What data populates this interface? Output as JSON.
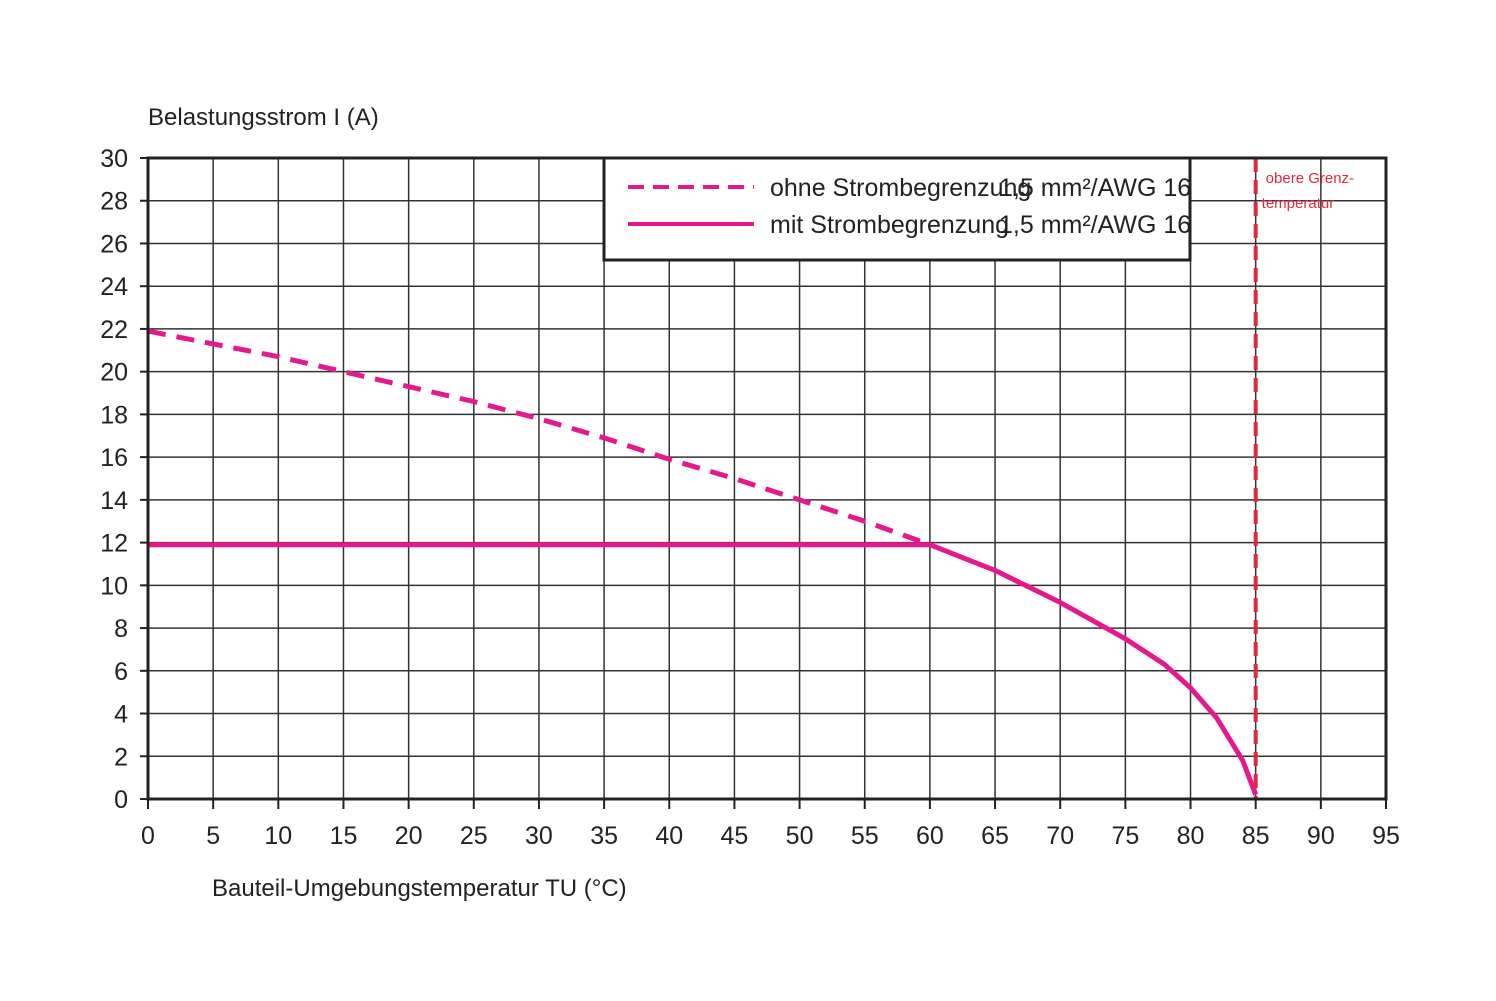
{
  "chart_data": {
    "type": "line",
    "ylabel": "Belastungsstrom I (A)",
    "xlabel": "Bauteil-Umgebungstemperatur TU (°C)",
    "xlim": [
      0,
      95
    ],
    "ylim": [
      0,
      30
    ],
    "x_ticks": [
      "0",
      "5",
      "10",
      "15",
      "20",
      "25",
      "30",
      "35",
      "40",
      "45",
      "50",
      "55",
      "60",
      "65",
      "70",
      "75",
      "80",
      "85",
      "90",
      "95"
    ],
    "y_ticks": [
      "0",
      "2",
      "4",
      "6",
      "8",
      "10",
      "12",
      "14",
      "16",
      "18",
      "20",
      "22",
      "24",
      "26",
      "28",
      "30"
    ],
    "grid": true,
    "legend_position": "top-center",
    "series": [
      {
        "name": "ohne Strombegrenzung",
        "spec": "1,5 mm²/AWG 16",
        "style": "dashed",
        "color": "#e6198c",
        "points": [
          [
            0,
            21.9
          ],
          [
            5,
            21.3
          ],
          [
            10,
            20.7
          ],
          [
            15,
            20.0
          ],
          [
            20,
            19.3
          ],
          [
            25,
            18.6
          ],
          [
            30,
            17.8
          ],
          [
            35,
            16.9
          ],
          [
            40,
            15.9
          ],
          [
            45,
            15.0
          ],
          [
            50,
            14.0
          ],
          [
            55,
            13.0
          ],
          [
            60,
            11.9
          ]
        ]
      },
      {
        "name": "mit Strombegrenzung",
        "spec": "1,5 mm²/AWG 16",
        "style": "solid",
        "color": "#e6198c",
        "points": [
          [
            0,
            11.9
          ],
          [
            60,
            11.9
          ],
          [
            65,
            10.7
          ],
          [
            70,
            9.2
          ],
          [
            75,
            7.5
          ],
          [
            78,
            6.3
          ],
          [
            80,
            5.2
          ],
          [
            82,
            3.8
          ],
          [
            84,
            1.8
          ],
          [
            85,
            0.2
          ]
        ]
      }
    ],
    "annotations": [
      {
        "text_line1": "obere Grenz-",
        "text_line2": "temperatur",
        "x": 85,
        "style": "dashed-vertical",
        "color": "#e0283a"
      }
    ]
  }
}
